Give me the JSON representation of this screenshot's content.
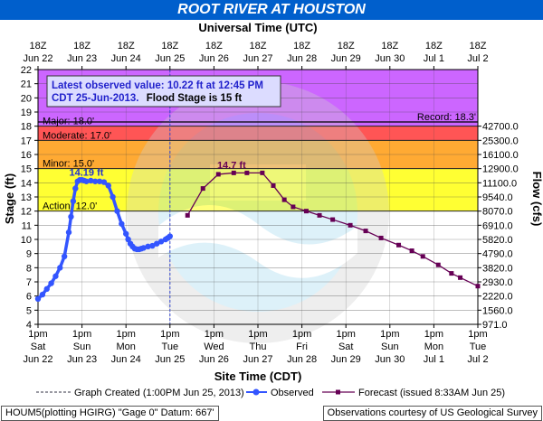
{
  "title": "ROOT RIVER AT HOUSTON",
  "top_axis_title": "Universal Time (UTC)",
  "bottom_axis_title": "Site Time (CDT)",
  "left_axis_title": "Stage (ft)",
  "right_axis_title": "Flow (cfs)",
  "latest_box": {
    "line1": "Latest observed value: 10.22 ft at 12:45 PM",
    "line2_date": "CDT 25-Jun-2013.",
    "line2_flood": "Flood Stage is 15 ft"
  },
  "legend": {
    "graph_created": "Graph Created (1:00PM Jun 25, 2013)",
    "observed": "Observed",
    "forecast": "Forecast (issued 8:33AM Jun 25)"
  },
  "footer_left": "HOUM5(plotting HGIRG) \"Gage 0\" Datum: 667'",
  "footer_right": "Observations courtesy of US Geological Survey",
  "colors": {
    "record": "#e080f0",
    "major": "#cc66ff",
    "moderate": "#ff5555",
    "minor": "#ffaa33",
    "action": "#ffff33",
    "normal": "#ffffff",
    "observed": "#3355ff",
    "forecast": "#660055",
    "title_bg": "#005fcc"
  },
  "chart_data": {
    "type": "line",
    "ylim": [
      4,
      22
    ],
    "y_ticks": [
      4,
      5,
      6,
      7,
      8,
      9,
      10,
      11,
      12,
      13,
      14,
      15,
      16,
      17,
      18,
      19,
      20,
      21,
      22
    ],
    "x_range_days": [
      "Jun 22 12:00 CDT",
      "Jul 2 12:00 CDT"
    ],
    "bottom_ticks": [
      {
        "time": "1pm",
        "day": "Sat",
        "date": "Jun 22"
      },
      {
        "time": "1pm",
        "day": "Sun",
        "date": "Jun 23"
      },
      {
        "time": "1pm",
        "day": "Mon",
        "date": "Jun 24"
      },
      {
        "time": "1pm",
        "day": "Tue",
        "date": "Jun 25"
      },
      {
        "time": "1pm",
        "day": "Wed",
        "date": "Jun 26"
      },
      {
        "time": "1pm",
        "day": "Thu",
        "date": "Jun 27"
      },
      {
        "time": "1pm",
        "day": "Fri",
        "date": "Jun 28"
      },
      {
        "time": "1pm",
        "day": "Sat",
        "date": "Jun 29"
      },
      {
        "time": "1pm",
        "day": "Sun",
        "date": "Jun 30"
      },
      {
        "time": "1pm",
        "day": "Mon",
        "date": "Jul 1"
      },
      {
        "time": "1pm",
        "day": "Tue",
        "date": "Jul 2"
      }
    ],
    "top_ticks": [
      {
        "time": "18Z",
        "date": "Jun 22"
      },
      {
        "time": "18Z",
        "date": "Jun 23"
      },
      {
        "time": "18Z",
        "date": "Jun 24"
      },
      {
        "time": "18Z",
        "date": "Jun 25"
      },
      {
        "time": "18Z",
        "date": "Jun 26"
      },
      {
        "time": "18Z",
        "date": "Jun 27"
      },
      {
        "time": "18Z",
        "date": "Jun 28"
      },
      {
        "time": "18Z",
        "date": "Jun 29"
      },
      {
        "time": "18Z",
        "date": "Jun 30"
      },
      {
        "time": "18Z",
        "date": "Jul 1"
      },
      {
        "time": "18Z",
        "date": "Jul 2"
      }
    ],
    "flow_ticks": [
      {
        "stage": 4,
        "label": "971.0"
      },
      {
        "stage": 5,
        "label": "1560.0"
      },
      {
        "stage": 6,
        "label": "2220.0"
      },
      {
        "stage": 7,
        "label": "2930.0"
      },
      {
        "stage": 8,
        "label": "3820.0"
      },
      {
        "stage": 9,
        "label": "4790.0"
      },
      {
        "stage": 10,
        "label": "5820.0"
      },
      {
        "stage": 11,
        "label": "6910.0"
      },
      {
        "stage": 12,
        "label": "8070.0"
      },
      {
        "stage": 13,
        "label": "9540.0"
      },
      {
        "stage": 14,
        "label": "11100.0"
      },
      {
        "stage": 15,
        "label": "12900.0"
      },
      {
        "stage": 16,
        "label": "16100.0"
      },
      {
        "stage": 17,
        "label": "25300.0"
      },
      {
        "stage": 18,
        "label": "42700.0"
      }
    ],
    "flood_categories": [
      {
        "name": "Action",
        "label": "Action: 12.0'",
        "stage": 12.0
      },
      {
        "name": "Minor",
        "label": "Minor: 15.0'",
        "stage": 15.0
      },
      {
        "name": "Moderate",
        "label": "Moderate: 17.0'",
        "stage": 17.0
      },
      {
        "name": "Major",
        "label": "Major: 18.0'",
        "stage": 18.0
      }
    ],
    "record": {
      "label": "Record: 18.3'",
      "stage": 18.3
    },
    "peak_labels": [
      {
        "label": "14.19 ft",
        "day": 1.1,
        "stage": 14.19
      },
      {
        "label": "14.7 ft",
        "day": 4.4,
        "stage": 14.7
      }
    ],
    "graph_created_day": 3.0,
    "series": [
      {
        "name": "Observed",
        "x_days": [
          0.0,
          0.1,
          0.2,
          0.3,
          0.4,
          0.5,
          0.6,
          0.7,
          0.75,
          0.8,
          0.85,
          0.9,
          0.95,
          1.0,
          1.05,
          1.1,
          1.2,
          1.3,
          1.4,
          1.5,
          1.6,
          1.7,
          1.8,
          1.9,
          2.0,
          2.05,
          2.1,
          2.15,
          2.2,
          2.25,
          2.3,
          2.35,
          2.4,
          2.5,
          2.6,
          2.7,
          2.8,
          2.9,
          2.95,
          3.0
        ],
        "y": [
          5.8,
          6.1,
          6.5,
          6.9,
          7.4,
          8.0,
          8.8,
          10.5,
          11.6,
          12.7,
          13.6,
          14.1,
          14.2,
          14.2,
          14.15,
          14.1,
          14.15,
          14.1,
          14.1,
          14.05,
          13.8,
          13.0,
          12.0,
          11.1,
          10.4,
          10.0,
          9.7,
          9.5,
          9.35,
          9.3,
          9.3,
          9.35,
          9.4,
          9.5,
          9.55,
          9.7,
          9.85,
          10.0,
          10.1,
          10.22
        ]
      },
      {
        "name": "Forecast",
        "x_days": [
          3.4,
          3.75,
          4.1,
          4.45,
          4.75,
          5.1,
          5.35,
          5.6,
          5.8,
          6.1,
          6.4,
          6.7,
          7.1,
          7.45,
          7.8,
          8.2,
          8.5,
          8.75,
          9.1,
          9.4,
          9.6,
          10.0
        ],
        "y": [
          11.7,
          13.6,
          14.6,
          14.7,
          14.7,
          14.7,
          13.8,
          12.8,
          12.3,
          12.0,
          11.7,
          11.4,
          11.0,
          10.6,
          10.1,
          9.6,
          9.2,
          8.8,
          8.2,
          7.6,
          7.3,
          6.7
        ]
      }
    ]
  }
}
